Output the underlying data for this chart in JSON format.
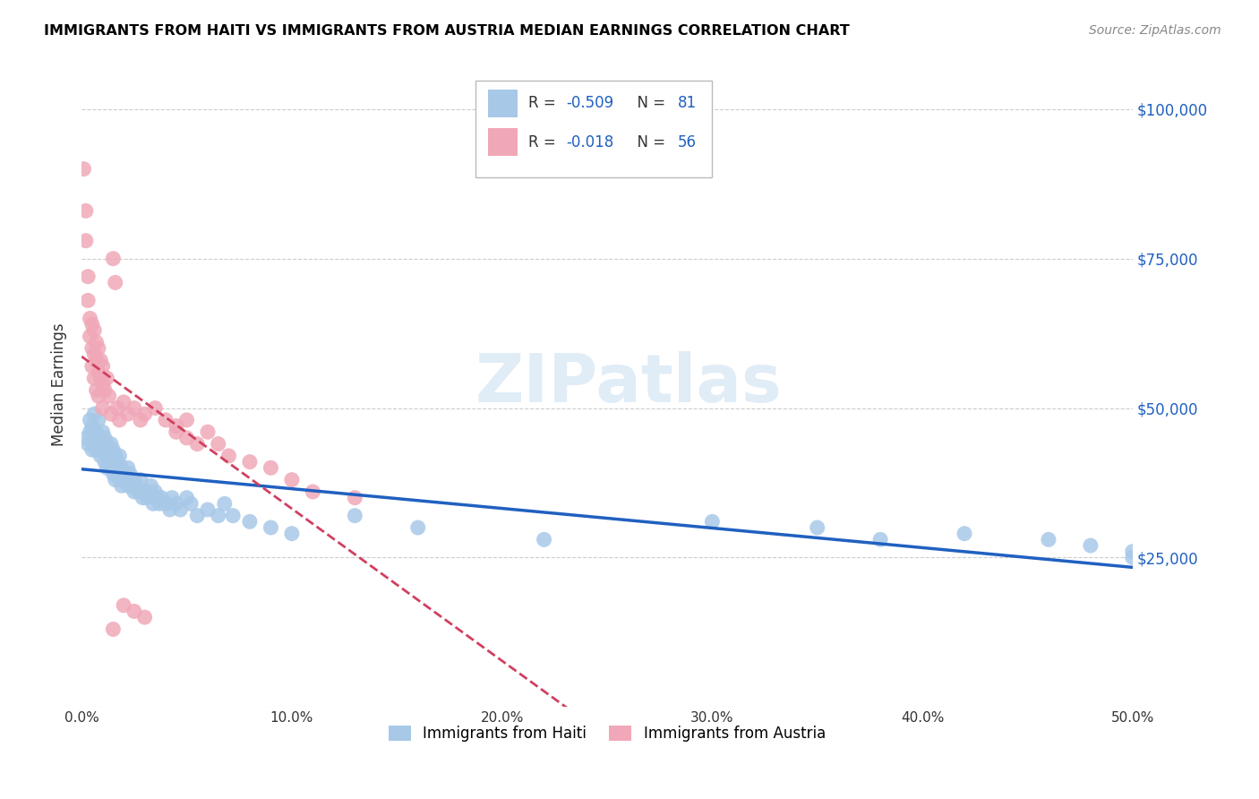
{
  "title": "IMMIGRANTS FROM HAITI VS IMMIGRANTS FROM AUSTRIA MEDIAN EARNINGS CORRELATION CHART",
  "source": "Source: ZipAtlas.com",
  "ylabel": "Median Earnings",
  "yticks": [
    0,
    25000,
    50000,
    75000,
    100000
  ],
  "ytick_labels": [
    "",
    "$25,000",
    "$50,000",
    "$75,000",
    "$100,000"
  ],
  "ylim": [
    0,
    108000
  ],
  "xlim": [
    0,
    0.5
  ],
  "legend_R_haiti": "-0.509",
  "legend_N_haiti": "81",
  "legend_R_austria": "-0.018",
  "legend_N_austria": "56",
  "haiti_color": "#a8c8e8",
  "austria_color": "#f0a8b8",
  "haiti_line_color": "#2060c0",
  "austria_line_color": "#d04060",
  "watermark": "ZIPatlas",
  "background_color": "#ffffff",
  "grid_color": "#cccccc",
  "haiti_x": [
    0.002,
    0.003,
    0.004,
    0.004,
    0.005,
    0.005,
    0.006,
    0.006,
    0.007,
    0.007,
    0.008,
    0.008,
    0.009,
    0.009,
    0.01,
    0.01,
    0.011,
    0.011,
    0.012,
    0.012,
    0.013,
    0.013,
    0.014,
    0.014,
    0.015,
    0.015,
    0.016,
    0.016,
    0.017,
    0.017,
    0.018,
    0.018,
    0.019,
    0.019,
    0.02,
    0.021,
    0.022,
    0.022,
    0.023,
    0.024,
    0.025,
    0.025,
    0.026,
    0.027,
    0.028,
    0.029,
    0.03,
    0.031,
    0.032,
    0.033,
    0.034,
    0.035,
    0.036,
    0.037,
    0.038,
    0.04,
    0.042,
    0.043,
    0.045,
    0.047,
    0.05,
    0.052,
    0.055,
    0.06,
    0.065,
    0.068,
    0.072,
    0.08,
    0.09,
    0.1,
    0.13,
    0.16,
    0.22,
    0.3,
    0.35,
    0.38,
    0.42,
    0.46,
    0.48,
    0.5,
    0.5
  ],
  "haiti_y": [
    45000,
    44000,
    48000,
    46000,
    47000,
    43000,
    49000,
    44000,
    46000,
    43000,
    48000,
    45000,
    44000,
    42000,
    46000,
    43000,
    45000,
    41000,
    44000,
    40000,
    43000,
    41000,
    44000,
    40000,
    43000,
    39000,
    42000,
    38000,
    41000,
    39000,
    42000,
    38000,
    40000,
    37000,
    39000,
    38000,
    40000,
    37000,
    39000,
    37000,
    38000,
    36000,
    37000,
    36000,
    38000,
    35000,
    36000,
    35000,
    36000,
    37000,
    34000,
    36000,
    35000,
    34000,
    35000,
    34000,
    33000,
    35000,
    34000,
    33000,
    35000,
    34000,
    32000,
    33000,
    32000,
    34000,
    32000,
    31000,
    30000,
    29000,
    32000,
    30000,
    28000,
    31000,
    30000,
    28000,
    29000,
    28000,
    27000,
    26000,
    25000
  ],
  "austria_x": [
    0.001,
    0.002,
    0.002,
    0.003,
    0.003,
    0.004,
    0.004,
    0.005,
    0.005,
    0.005,
    0.006,
    0.006,
    0.006,
    0.007,
    0.007,
    0.007,
    0.008,
    0.008,
    0.008,
    0.009,
    0.009,
    0.01,
    0.01,
    0.01,
    0.011,
    0.012,
    0.013,
    0.014,
    0.015,
    0.016,
    0.017,
    0.018,
    0.02,
    0.022,
    0.025,
    0.028,
    0.03,
    0.035,
    0.04,
    0.045,
    0.05,
    0.055,
    0.06,
    0.065,
    0.07,
    0.08,
    0.09,
    0.1,
    0.11,
    0.13,
    0.02,
    0.025,
    0.03,
    0.015,
    0.045,
    0.05
  ],
  "austria_y": [
    90000,
    83000,
    78000,
    72000,
    68000,
    65000,
    62000,
    64000,
    60000,
    57000,
    63000,
    59000,
    55000,
    61000,
    58000,
    53000,
    60000,
    56000,
    52000,
    58000,
    55000,
    57000,
    54000,
    50000,
    53000,
    55000,
    52000,
    49000,
    75000,
    71000,
    50000,
    48000,
    51000,
    49000,
    50000,
    48000,
    49000,
    50000,
    48000,
    47000,
    45000,
    44000,
    46000,
    44000,
    42000,
    41000,
    40000,
    38000,
    36000,
    35000,
    17000,
    16000,
    15000,
    13000,
    46000,
    48000
  ]
}
